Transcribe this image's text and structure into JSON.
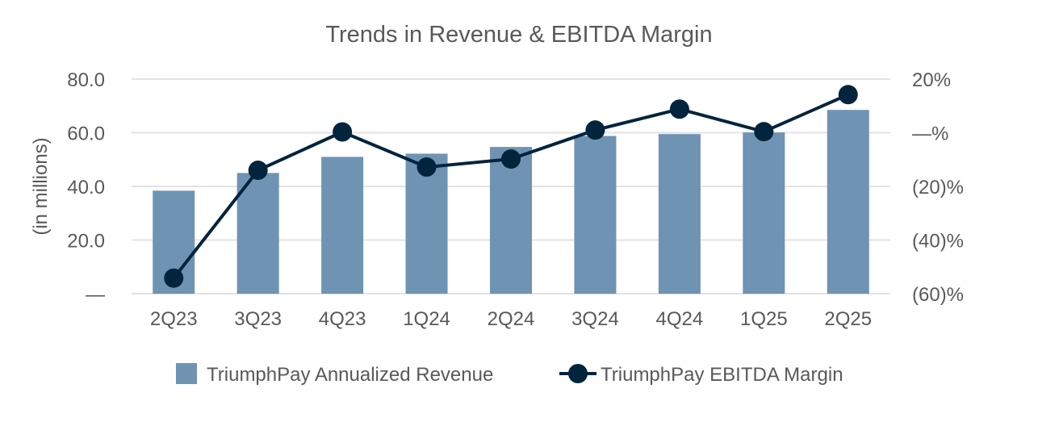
{
  "chart_data": {
    "type": "bar+line",
    "title": "Trends in Revenue & EBITDA Margin",
    "ylabel": "(in millions)",
    "categories": [
      "2Q23",
      "3Q23",
      "4Q23",
      "1Q24",
      "2Q24",
      "3Q24",
      "4Q24",
      "1Q25",
      "2Q25"
    ],
    "ylim": [
      0,
      80
    ],
    "y_ticks": [
      "—",
      "20.0",
      "40.0",
      "60.0",
      "80.0"
    ],
    "y2lim": [
      -60,
      20
    ],
    "y2_ticks": [
      "(60)%",
      "(40)%",
      "(20)%",
      "—%",
      "20%"
    ],
    "grid": true,
    "legend_position": "bottom",
    "series": [
      {
        "name": "TriumphPay Annualized Revenue",
        "type": "bar",
        "axis": "left",
        "color": "#6f93b3",
        "values": [
          38.4,
          45.0,
          51.0,
          52.2,
          54.7,
          58.8,
          59.5,
          60.1,
          68.5
        ]
      },
      {
        "name": "TriumphPay EBITDA Margin",
        "type": "line",
        "axis": "right",
        "color": "#03243d",
        "values": [
          -54.2,
          -14.0,
          0.3,
          -12.8,
          -9.8,
          1.0,
          8.8,
          0.4,
          14.2
        ]
      }
    ]
  }
}
